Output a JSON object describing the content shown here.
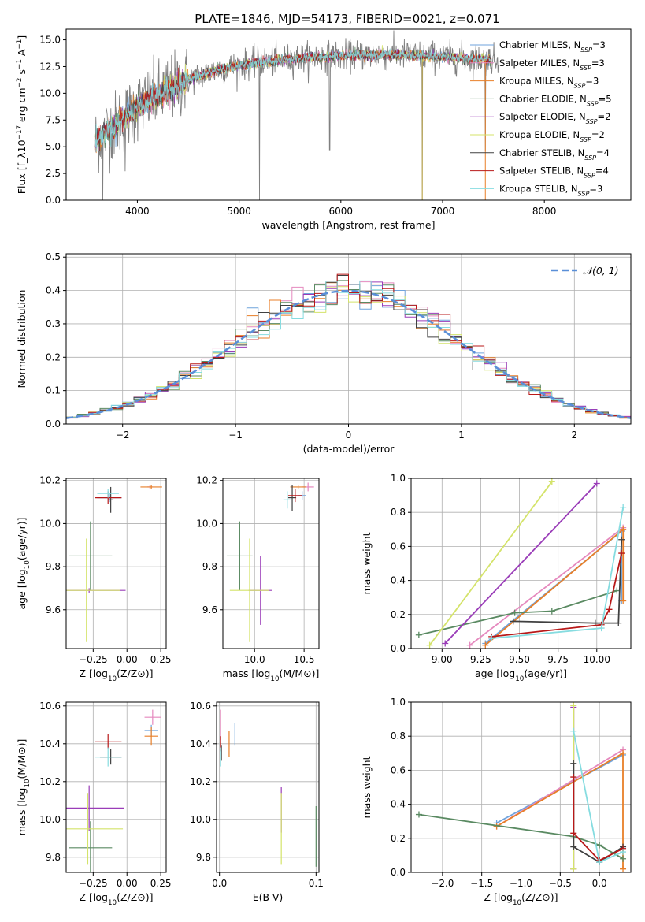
{
  "figure_title": "PLATE=1846, MJD=54173, FIBERID=0021, z=0.071",
  "models": [
    {
      "name": "Chabrier MILES",
      "nssp": "3",
      "color": "#6fa3dc"
    },
    {
      "name": "Salpeter MILES",
      "nssp": "3",
      "color": "#e589be"
    },
    {
      "name": "Kroupa MILES",
      "nssp": "3",
      "color": "#e87f28"
    },
    {
      "name": "Chabrier ELODIE",
      "nssp": "5",
      "color": "#5a8a62"
    },
    {
      "name": "Salpeter ELODIE",
      "nssp": "2",
      "color": "#9a3db8"
    },
    {
      "name": "Kroupa ELODIE",
      "nssp": "2",
      "color": "#d4e36a"
    },
    {
      "name": "Chabrier STELIB",
      "nssp": "4",
      "color": "#404040"
    },
    {
      "name": "Salpeter STELIB",
      "nssp": "4",
      "color": "#b81818"
    },
    {
      "name": "Kroupa STELIB",
      "nssp": "3",
      "color": "#86dce0"
    }
  ],
  "chart_data": [
    {
      "id": "spectrum",
      "type": "line",
      "xlabel": "wavelength [Angstrom, rest frame]",
      "ylabel": "Flux [f_λ10^-17 erg cm^-2 s^-1 A^-1]",
      "xlim": [
        3300,
        8850
      ],
      "ylim": [
        0,
        16
      ],
      "xticks": [
        4000,
        5000,
        6000,
        7000,
        8000
      ],
      "yticks": [
        0.0,
        2.5,
        5.0,
        7.5,
        10.0,
        12.5,
        15.0
      ],
      "xtick_labels": [
        "4000",
        "5000",
        "6000",
        "7000",
        "8000"
      ],
      "ytick_labels": [
        "0.0",
        "2.5",
        "5.0",
        "7.5",
        "10.0",
        "12.5",
        "15.0"
      ],
      "grid": false,
      "legend": "right",
      "data_color": "#808080",
      "continuum_x": [
        3580,
        3700,
        3850,
        4000,
        4200,
        4400,
        4600,
        4800,
        5000,
        5200,
        5400,
        5600,
        5800,
        6000,
        6200,
        6400,
        6600,
        6800,
        7000,
        7200,
        7400,
        7550
      ],
      "continuum_y": [
        5.5,
        6.5,
        7.5,
        8.8,
        9.8,
        10.8,
        11.6,
        12.2,
        12.6,
        12.9,
        13.1,
        13.3,
        13.4,
        13.5,
        13.6,
        13.6,
        13.6,
        13.5,
        13.4,
        13.3,
        13.2,
        13.1
      ],
      "noise": 1.0,
      "model_xrange": [
        3580,
        7480
      ],
      "drops": [
        3660,
        3880,
        5200,
        5890,
        6800,
        7420
      ]
    },
    {
      "id": "residuals",
      "type": "histogram",
      "xlabel": "(data-model)/error",
      "ylabel": "Normed distribution",
      "xlim": [
        -2.5,
        2.5
      ],
      "ylim": [
        0,
        0.51
      ],
      "xticks": [
        -2,
        -1,
        0,
        1,
        2
      ],
      "yticks": [
        0.0,
        0.1,
        0.2,
        0.3,
        0.4,
        0.5
      ],
      "xtick_labels": [
        "−2",
        "−1",
        "0",
        "1",
        "2"
      ],
      "ytick_labels": [
        "0.0",
        "0.1",
        "0.2",
        "0.3",
        "0.4",
        "0.5"
      ],
      "grid": true,
      "legend": "upper right",
      "normal_label": "𝒩(0, 1)",
      "normal_color": "#5a8fd8",
      "bin_width": 0.1
    },
    {
      "id": "age-vs-Z",
      "type": "errorbar",
      "xlabel": "Z [log10(Z/Z⊙)]",
      "ylabel": "age  [log10(age/yr)]",
      "xlim": [
        -0.45,
        0.29
      ],
      "ylim": [
        9.42,
        10.21
      ],
      "xticks": [
        -0.25,
        0.0,
        0.25
      ],
      "yticks": [
        9.6,
        9.8,
        10.0,
        10.2
      ],
      "xtick_labels": [
        "−0.25",
        "0.00",
        "0.25"
      ],
      "ytick_labels": [
        "9.6",
        "9.8",
        "10.0",
        "10.2"
      ],
      "grid": true,
      "points": [
        {
          "m": 0,
          "x": -0.13,
          "y": 10.12,
          "xe": 0.09,
          "ye": 0.02
        },
        {
          "m": 1,
          "x": 0.17,
          "y": 10.17,
          "xe": 0.02,
          "ye": 0.01
        },
        {
          "m": 2,
          "x": 0.18,
          "y": 10.17,
          "xe": 0.08,
          "ye": 0.01
        },
        {
          "m": 3,
          "x": -0.27,
          "y": 9.85,
          "xe": 0.16,
          "ye": 0.16
        },
        {
          "m": 4,
          "x": -0.28,
          "y": 9.69,
          "xe": 0.27,
          "ye": 0.01
        },
        {
          "m": 5,
          "x": -0.3,
          "y": 9.69,
          "xe": 0.25,
          "ye": 0.24
        },
        {
          "m": 6,
          "x": -0.12,
          "y": 10.11,
          "xe": 0.02,
          "ye": 0.06
        },
        {
          "m": 7,
          "x": -0.14,
          "y": 10.12,
          "xe": 0.1,
          "ye": 0.03
        },
        {
          "m": 8,
          "x": -0.14,
          "y": 10.14,
          "xe": 0.08,
          "ye": 0.02
        }
      ]
    },
    {
      "id": "age-vs-mass",
      "type": "errorbar",
      "xlabel": "mass [log10(M/M⊙)]",
      "ylabel": "",
      "xlim": [
        9.68,
        10.65
      ],
      "ylim": [
        9.42,
        10.21
      ],
      "xticks": [
        10.0,
        10.5
      ],
      "yticks": [
        9.6,
        9.8,
        10.0,
        10.2
      ],
      "xtick_labels": [
        "10.0",
        "10.5"
      ],
      "ytick_labels": [
        "9.6",
        "9.8",
        "10.0",
        "10.2"
      ],
      "grid": true,
      "points": [
        {
          "m": 0,
          "x": 10.48,
          "y": 10.13,
          "xe": 0.04,
          "ye": 0.02
        },
        {
          "m": 1,
          "x": 10.54,
          "y": 10.17,
          "xe": 0.06,
          "ye": 0.02
        },
        {
          "m": 2,
          "x": 10.44,
          "y": 10.17,
          "xe": 0.08,
          "ye": 0.01
        },
        {
          "m": 3,
          "x": 9.85,
          "y": 9.85,
          "xe": 0.13,
          "ye": 0.16
        },
        {
          "m": 4,
          "x": 10.06,
          "y": 9.69,
          "xe": 0.12,
          "ye": 0.16
        },
        {
          "m": 5,
          "x": 9.95,
          "y": 9.69,
          "xe": 0.2,
          "ye": 0.24
        },
        {
          "m": 6,
          "x": 10.38,
          "y": 10.12,
          "xe": 0.04,
          "ye": 0.06
        },
        {
          "m": 7,
          "x": 10.41,
          "y": 10.13,
          "xe": 0.07,
          "ye": 0.03
        },
        {
          "m": 8,
          "x": 10.33,
          "y": 10.11,
          "xe": 0.04,
          "ye": 0.04
        }
      ]
    },
    {
      "id": "weight-vs-age",
      "type": "line",
      "xlabel": "age  [log10(age/yr)]",
      "ylabel": "mass weight",
      "xlim": [
        8.8,
        10.22
      ],
      "ylim": [
        0,
        1
      ],
      "xticks": [
        9.0,
        9.25,
        9.5,
        9.75,
        10.0
      ],
      "yticks": [
        0.0,
        0.2,
        0.4,
        0.6,
        0.8,
        1.0
      ],
      "xtick_labels": [
        "9.00",
        "9.25",
        "9.50",
        "9.75",
        "10.00"
      ],
      "ytick_labels": [
        "0.0",
        "0.2",
        "0.4",
        "0.6",
        "0.8",
        "1.0"
      ],
      "grid": true,
      "series": [
        {
          "m": 0,
          "x": [
            9.28,
            10.16,
            10.16
          ],
          "y": [
            0.03,
            0.69,
            0.28
          ]
        },
        {
          "m": 1,
          "x": [
            9.18,
            10.17
          ],
          "y": [
            0.02,
            0.71
          ]
        },
        {
          "m": 2,
          "x": [
            9.28,
            10.17,
            10.17
          ],
          "y": [
            0.02,
            0.7,
            0.28
          ]
        },
        {
          "m": 3,
          "x": [
            8.85,
            9.47,
            9.71,
            10.13
          ],
          "y": [
            0.08,
            0.21,
            0.22,
            0.34
          ]
        },
        {
          "m": 4,
          "x": [
            9.02,
            10.0
          ],
          "y": [
            0.03,
            0.97
          ]
        },
        {
          "m": 5,
          "x": [
            8.92,
            9.71
          ],
          "y": [
            0.02,
            0.98
          ]
        },
        {
          "m": 6,
          "x": [
            9.46,
            9.99,
            10.14,
            10.16
          ],
          "y": [
            0.16,
            0.15,
            0.15,
            0.64
          ]
        },
        {
          "m": 7,
          "x": [
            9.32,
            10.03,
            10.08,
            10.16
          ],
          "y": [
            0.07,
            0.14,
            0.23,
            0.56
          ]
        },
        {
          "m": 8,
          "x": [
            9.32,
            10.03,
            10.17
          ],
          "y": [
            0.06,
            0.12,
            0.83
          ]
        }
      ]
    },
    {
      "id": "mass-vs-Z",
      "type": "errorbar",
      "xlabel": "Z [log10(Z/Z⊙)]",
      "ylabel": "mass [log10(M/M⊙)]",
      "xlim": [
        -0.45,
        0.29
      ],
      "ylim": [
        9.72,
        10.62
      ],
      "xticks": [
        -0.25,
        0.0,
        0.25
      ],
      "yticks": [
        9.8,
        10.0,
        10.2,
        10.4,
        10.6
      ],
      "xtick_labels": [
        "−0.25",
        "0.00",
        "0.25"
      ],
      "ytick_labels": [
        "9.8",
        "10.0",
        "10.2",
        "10.4",
        "10.6"
      ],
      "grid": true,
      "points": [
        {
          "m": 0,
          "x": 0.18,
          "y": 10.47,
          "xe": 0.05,
          "ye": 0.03
        },
        {
          "m": 1,
          "x": 0.19,
          "y": 10.54,
          "xe": 0.06,
          "ye": 0.04
        },
        {
          "m": 2,
          "x": 0.18,
          "y": 10.44,
          "xe": 0.05,
          "ye": 0.05
        },
        {
          "m": 3,
          "x": -0.27,
          "y": 9.85,
          "xe": 0.16,
          "ye": 0.14
        },
        {
          "m": 4,
          "x": -0.28,
          "y": 10.06,
          "xe": 0.26,
          "ye": 0.12
        },
        {
          "m": 5,
          "x": -0.29,
          "y": 9.95,
          "xe": 0.26,
          "ye": 0.19
        },
        {
          "m": 6,
          "x": -0.12,
          "y": 10.33,
          "xe": 0.08,
          "ye": 0.04
        },
        {
          "m": 7,
          "x": -0.14,
          "y": 10.41,
          "xe": 0.1,
          "ye": 0.04
        },
        {
          "m": 8,
          "x": -0.14,
          "y": 10.33,
          "xe": 0.1,
          "ye": 0.05
        }
      ]
    },
    {
      "id": "mass-vs-ebv",
      "type": "errorbar",
      "xlabel": "E(B-V)",
      "ylabel": "",
      "xlim": [
        -0.003,
        0.103
      ],
      "ylim": [
        9.72,
        10.62
      ],
      "xticks": [
        0.0,
        0.1
      ],
      "yticks": [
        9.8,
        10.0,
        10.2,
        10.4,
        10.6
      ],
      "xtick_labels": [
        "0.0",
        "0.1"
      ],
      "ytick_labels": [
        "9.8",
        "10.0",
        "10.2",
        "10.4",
        "10.6"
      ],
      "grid": true,
      "points": [
        {
          "m": 0,
          "x": 0.016,
          "y": 10.45,
          "xe": 0.0,
          "ye": 0.06
        },
        {
          "m": 1,
          "x": 0.001,
          "y": 10.5,
          "xe": 0.0,
          "ye": 0.08
        },
        {
          "m": 2,
          "x": 0.01,
          "y": 10.4,
          "xe": 0.0,
          "ye": 0.07
        },
        {
          "m": 3,
          "x": 0.1,
          "y": 9.91,
          "xe": 0.0,
          "ye": 0.16
        },
        {
          "m": 4,
          "x": 0.064,
          "y": 10.05,
          "xe": 0.0,
          "ye": 0.12
        },
        {
          "m": 5,
          "x": 0.064,
          "y": 9.95,
          "xe": 0.0,
          "ye": 0.19
        },
        {
          "m": 6,
          "x": 0.002,
          "y": 10.35,
          "xe": 0.0,
          "ye": 0.04
        },
        {
          "m": 7,
          "x": 0.001,
          "y": 10.4,
          "xe": 0.0,
          "ye": 0.04
        },
        {
          "m": 8,
          "x": 0.001,
          "y": 10.33,
          "xe": 0.0,
          "ye": 0.05
        }
      ]
    },
    {
      "id": "weight-vs-Z",
      "type": "line",
      "xlabel": "Z [log10(Z/Z⊙)]",
      "ylabel": "mass weight",
      "xlim": [
        -2.4,
        0.4
      ],
      "ylim": [
        0,
        1
      ],
      "xticks": [
        -2.0,
        -1.5,
        -1.0,
        -0.5,
        0.0
      ],
      "yticks": [
        0.0,
        0.2,
        0.4,
        0.6,
        0.8,
        1.0
      ],
      "xtick_labels": [
        "−2.0",
        "−1.5",
        "−1.0",
        "−0.5",
        "0.0"
      ],
      "ytick_labels": [
        "0.0",
        "0.2",
        "0.4",
        "0.6",
        "0.8",
        "1.0"
      ],
      "grid": true,
      "series": [
        {
          "m": 0,
          "x": [
            -1.31,
            0.3
          ],
          "y": [
            0.29,
            0.69
          ]
        },
        {
          "m": 1,
          "x": [
            -1.31,
            0.3
          ],
          "y": [
            0.27,
            0.72
          ]
        },
        {
          "m": 2,
          "x": [
            -1.31,
            0.3,
            0.3
          ],
          "y": [
            0.27,
            0.7,
            0.02
          ]
        },
        {
          "m": 3,
          "x": [
            -2.3,
            -0.33,
            0.0,
            0.3
          ],
          "y": [
            0.34,
            0.21,
            0.16,
            0.08
          ]
        },
        {
          "m": 4,
          "x": [
            -0.33,
            -0.33
          ],
          "y": [
            0.02,
            0.97
          ]
        },
        {
          "m": 5,
          "x": [
            -0.33,
            -0.33
          ],
          "y": [
            0.02,
            0.98
          ]
        },
        {
          "m": 6,
          "x": [
            -0.33,
            -0.33,
            0.0,
            0.3
          ],
          "y": [
            0.64,
            0.15,
            0.06,
            0.15
          ]
        },
        {
          "m": 7,
          "x": [
            -0.33,
            -0.33,
            0.0,
            0.3
          ],
          "y": [
            0.56,
            0.23,
            0.07,
            0.14
          ]
        },
        {
          "m": 8,
          "x": [
            -0.33,
            0.0,
            0.3
          ],
          "y": [
            0.83,
            0.06,
            0.12
          ]
        }
      ]
    }
  ]
}
